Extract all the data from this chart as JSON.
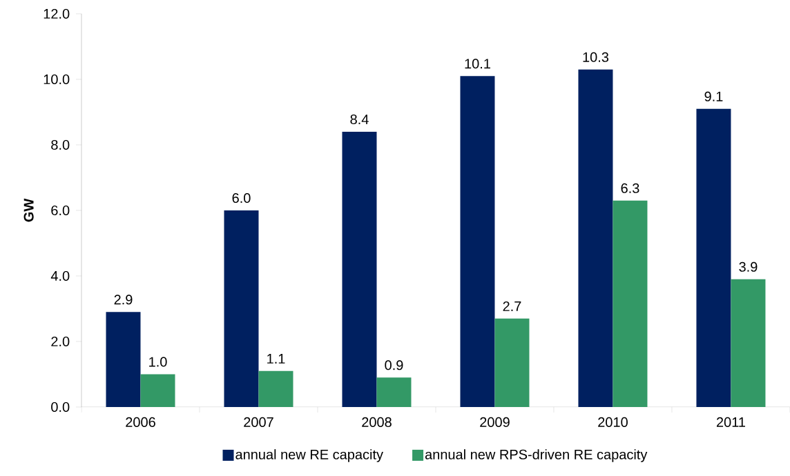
{
  "chart_data": {
    "type": "bar",
    "ylabel": "GW",
    "categories": [
      "2006",
      "2007",
      "2008",
      "2009",
      "2010",
      "2011"
    ],
    "series": [
      {
        "name": "annual new RE capacity",
        "color": "#002060",
        "values": [
          2.9,
          6.0,
          8.4,
          10.1,
          10.3,
          9.1
        ],
        "value_labels": [
          "2.9",
          "6.0",
          "8.4",
          "10.1",
          "10.3",
          "9.1"
        ]
      },
      {
        "name": "annual new RPS-driven RE capacity",
        "color": "#339966",
        "values": [
          1.0,
          1.1,
          0.9,
          2.7,
          6.3,
          3.9
        ],
        "value_labels": [
          "1.0",
          "1.1",
          "0.9",
          "2.7",
          "6.3",
          "3.9"
        ]
      }
    ],
    "ylim": [
      0,
      12
    ],
    "yticks": [
      {
        "value": 0,
        "label": "0.0"
      },
      {
        "value": 2,
        "label": "2.0"
      },
      {
        "value": 4,
        "label": "4.0"
      },
      {
        "value": 6,
        "label": "6.0"
      },
      {
        "value": 8,
        "label": "8.0"
      },
      {
        "value": 10,
        "label": "10.0"
      },
      {
        "value": 12,
        "label": "12.0"
      }
    ],
    "grid": false,
    "legend": "bottom"
  }
}
